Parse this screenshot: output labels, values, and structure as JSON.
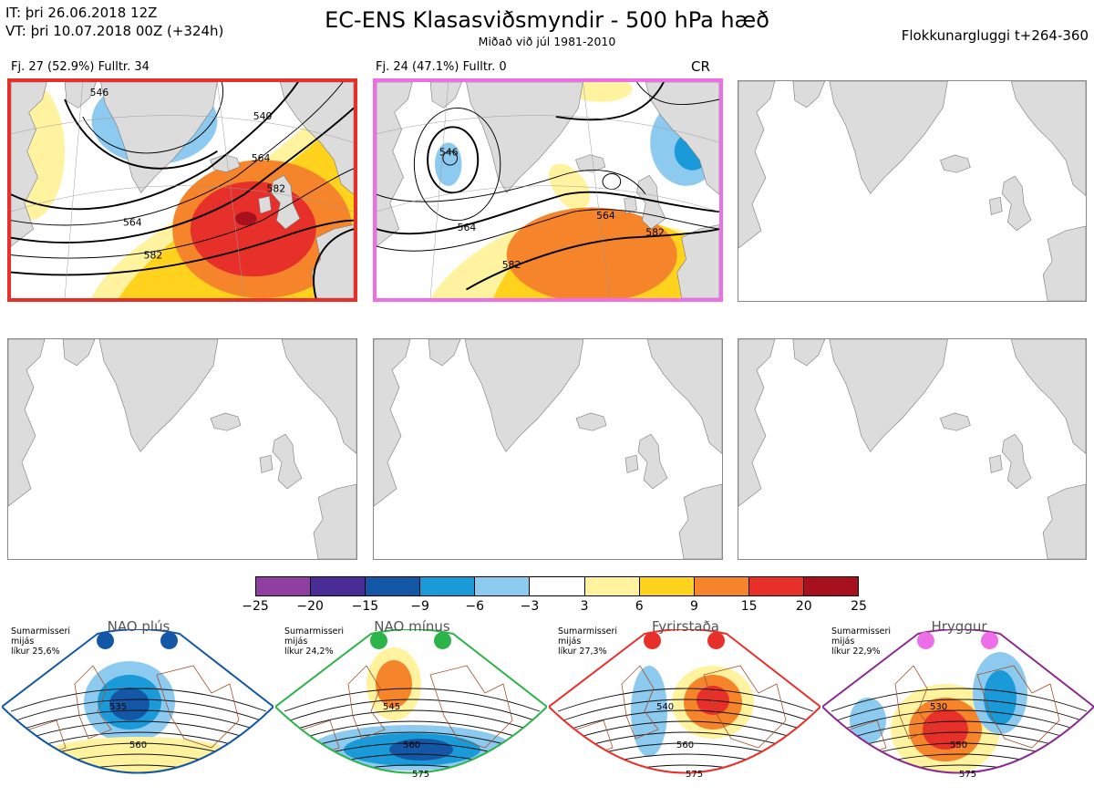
{
  "header": {
    "it_line": "IT: þri 26.06.2018 12Z",
    "vt_line": "VT: þri 10.07.2018 00Z  (+324h)",
    "title": "EC-ENS Klasasviðsmyndir - 500 hPa hæð",
    "subtitle": "Miðað við júl 1981-2010",
    "window": "Flokkunargluggi t+264-360"
  },
  "panels": [
    {
      "label": "Fj. 27 (52.9%)   Fulltr. 34",
      "contours": [
        "546",
        "540",
        "564",
        "582",
        "564",
        "582"
      ]
    },
    {
      "label": "Fj. 24 (47.1%)   Fulltr. 0",
      "tag": "CR",
      "contours": [
        "564",
        "546",
        "564",
        "582",
        "582"
      ]
    }
  ],
  "colorbar": {
    "ticks": [
      "−25",
      "−20",
      "−15",
      "−9",
      "−6",
      "−3",
      "3",
      "6",
      "9",
      "15",
      "20",
      "25"
    ],
    "colors": [
      "#8e3fa0",
      "#4a2c96",
      "#1457a6",
      "#1a9ad8",
      "#8ccaef",
      "#ffffff",
      "#fff3a0",
      "#ffd21e",
      "#f5842a",
      "#e8302b",
      "#a8101e"
    ]
  },
  "regimes": [
    {
      "name": "NAO plús",
      "note1": "Sumarmisseri",
      "note2": "mijás",
      "note3": "líkur 25,6%",
      "color": "#1457a6",
      "border": "#1457a6",
      "contours": [
        "535",
        "560"
      ]
    },
    {
      "name": "NAO mínus",
      "note1": "Sumarmisseri",
      "note2": "mijás",
      "note3": "líkur 24,2%",
      "color": "#2cb34a",
      "border": "#2cb34a",
      "contours": [
        "545",
        "560",
        "575"
      ]
    },
    {
      "name": "Fyrirstaða",
      "note1": "Sumarmisseri",
      "note2": "mijás",
      "note3": "líkur 27,3%",
      "color": "#e8302b",
      "border": "#e8302b",
      "contours": [
        "540",
        "560",
        "575"
      ]
    },
    {
      "name": "Hryggur",
      "note1": "Sumarmisseri",
      "note2": "mijás",
      "note3": "líkur 22,9%",
      "color": "#ee6ee8",
      "border": "#8b2a90",
      "contours": [
        "530",
        "550",
        "575"
      ]
    }
  ]
}
